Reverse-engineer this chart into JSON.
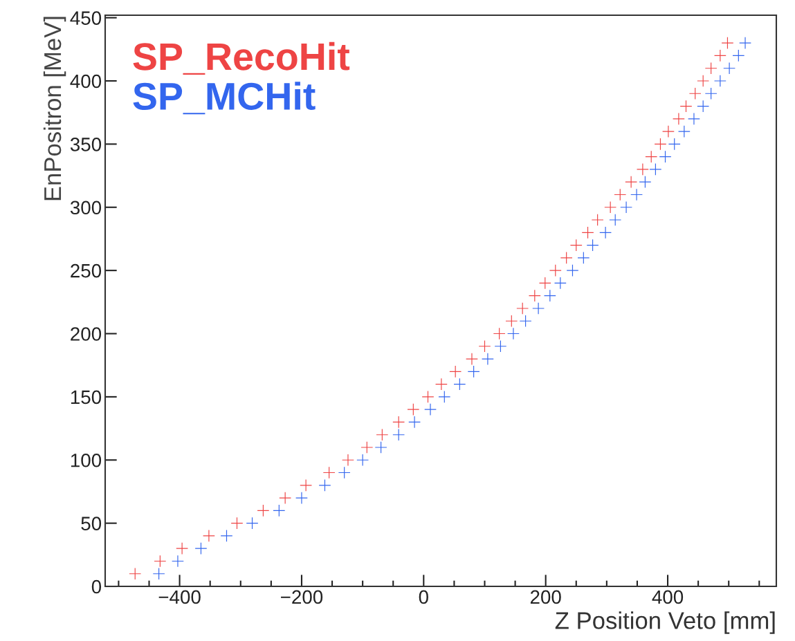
{
  "chart_data": {
    "type": "scatter",
    "xlabel": "Z Position Veto [mm]",
    "ylabel": "EnPositron [MeV]",
    "xlim": [
      -522,
      578
    ],
    "xticks": [
      -400,
      -200,
      0,
      200,
      400
    ],
    "ylim": [
      0,
      452
    ],
    "yticks": [
      0,
      50,
      100,
      150,
      200,
      250,
      300,
      350,
      400,
      450
    ],
    "grid": false,
    "legend": "top left",
    "marker": "cross",
    "series": [
      {
        "name": "SP_RecoHit",
        "color": "#ee4444",
        "x": [
          -473,
          -432,
          -396,
          -352,
          -306,
          -263,
          -227,
          -193,
          -155,
          -124,
          -93,
          -68,
          -41,
          -17,
          7,
          29,
          52,
          79,
          100,
          124,
          144,
          162,
          182,
          199,
          216,
          234,
          250,
          269,
          285,
          306,
          322,
          340,
          359,
          373,
          388,
          401,
          418,
          430,
          445,
          458,
          471,
          486,
          498
        ],
        "values": [
          10,
          20,
          30,
          40,
          50,
          60,
          70,
          80,
          90,
          100,
          110,
          120,
          130,
          140,
          150,
          160,
          170,
          180,
          190,
          200,
          210,
          220,
          230,
          240,
          250,
          260,
          270,
          280,
          290,
          300,
          310,
          320,
          330,
          340,
          350,
          360,
          370,
          380,
          390,
          400,
          410,
          420,
          430
        ]
      },
      {
        "name": "SP_MCHit",
        "color": "#3366ee",
        "x": [
          -434,
          -403,
          -365,
          -323,
          -281,
          -237,
          -200,
          -162,
          -130,
          -100,
          -70,
          -41,
          -15,
          11,
          34,
          59,
          82,
          105,
          126,
          147,
          167,
          188,
          207,
          224,
          244,
          262,
          277,
          298,
          314,
          332,
          349,
          363,
          380,
          396,
          411,
          427,
          443,
          458,
          471,
          486,
          501,
          516,
          527
        ],
        "values": [
          10,
          20,
          30,
          40,
          50,
          60,
          70,
          80,
          90,
          100,
          110,
          120,
          130,
          140,
          150,
          160,
          170,
          180,
          190,
          200,
          210,
          220,
          230,
          240,
          250,
          260,
          270,
          280,
          290,
          300,
          310,
          320,
          330,
          340,
          350,
          360,
          370,
          380,
          390,
          400,
          410,
          420,
          430
        ]
      }
    ]
  }
}
